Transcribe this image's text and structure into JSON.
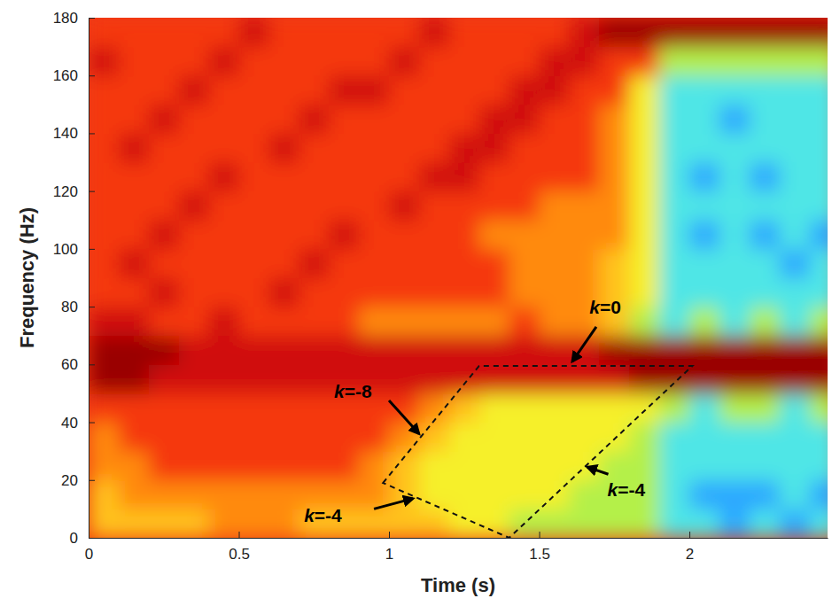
{
  "chart_data": {
    "type": "heatmap",
    "xlabel": "Time (s)",
    "ylabel": "Frequency (Hz)",
    "xlim": [
      0,
      2.46
    ],
    "ylim": [
      0,
      180
    ],
    "xticks": [
      0,
      0.5,
      1,
      1.5,
      2
    ],
    "yticks": [
      0,
      20,
      40,
      60,
      80,
      100,
      120,
      140,
      160,
      180
    ],
    "zlim": [
      0,
      10
    ],
    "x": [
      0.05,
      0.15,
      0.25,
      0.35,
      0.45,
      0.55,
      0.65,
      0.75,
      0.85,
      0.95,
      1.05,
      1.15,
      1.25,
      1.35,
      1.45,
      1.55,
      1.65,
      1.75,
      1.85,
      1.95,
      2.05,
      2.15,
      2.25,
      2.35,
      2.45
    ],
    "y": [
      5,
      15,
      25,
      35,
      45,
      55,
      65,
      75,
      85,
      95,
      105,
      115,
      125,
      135,
      145,
      155,
      165,
      175
    ],
    "values": [
      [
        6,
        6,
        6,
        6,
        7,
        7,
        7,
        6,
        6,
        6,
        6,
        6,
        5,
        5,
        4,
        4,
        4,
        4,
        4,
        3,
        3,
        2,
        3,
        2,
        3
      ],
      [
        6,
        7,
        7,
        7,
        7,
        7,
        7,
        7,
        7,
        7,
        6,
        5,
        5,
        5,
        5,
        5,
        4,
        4,
        4,
        3,
        2,
        2,
        2,
        3,
        2
      ],
      [
        7,
        7,
        8,
        8,
        8,
        8,
        8,
        8,
        8,
        7,
        6,
        5,
        5,
        5,
        5,
        5,
        5,
        4,
        4,
        3,
        3,
        3,
        3,
        3,
        3
      ],
      [
        7,
        8,
        8,
        8,
        8,
        8,
        8,
        8,
        8,
        8,
        7,
        6,
        5,
        5,
        5,
        5,
        5,
        5,
        4,
        3,
        3,
        3,
        3,
        3,
        3
      ],
      [
        8,
        8,
        8,
        8,
        8,
        8,
        8,
        8,
        8,
        8,
        8,
        7,
        6,
        5,
        5,
        5,
        5,
        5,
        5,
        4,
        3,
        4,
        4,
        3,
        4
      ],
      [
        10,
        10,
        9,
        9,
        9,
        9,
        9,
        9,
        9,
        9,
        9,
        9,
        9,
        9,
        9,
        9,
        9,
        9,
        10,
        10,
        10,
        10,
        10,
        10,
        10
      ],
      [
        10,
        10,
        10,
        9,
        9,
        9,
        9,
        9,
        9,
        9,
        9,
        9,
        9,
        9,
        9,
        9,
        9,
        10,
        10,
        10,
        10,
        10,
        10,
        10,
        10
      ],
      [
        9,
        9,
        8,
        8,
        9,
        8,
        8,
        8,
        8,
        7,
        7,
        7,
        7,
        7,
        8,
        7,
        7,
        6,
        4,
        3,
        4,
        3,
        4,
        3,
        4
      ],
      [
        8,
        8,
        9,
        8,
        8,
        8,
        9,
        8,
        8,
        8,
        8,
        8,
        8,
        8,
        7,
        7,
        7,
        6,
        5,
        3,
        3,
        3,
        3,
        3,
        3
      ],
      [
        8,
        9,
        8,
        8,
        8,
        8,
        8,
        9,
        8,
        8,
        8,
        8,
        8,
        8,
        7,
        7,
        7,
        6,
        5,
        3,
        3,
        3,
        3,
        2,
        3
      ],
      [
        8,
        8,
        9,
        8,
        8,
        8,
        8,
        8,
        9,
        8,
        8,
        8,
        8,
        7,
        7,
        7,
        7,
        7,
        5,
        3,
        2,
        3,
        2,
        3,
        2
      ],
      [
        8,
        8,
        8,
        9,
        8,
        8,
        8,
        8,
        8,
        8,
        9,
        8,
        8,
        8,
        8,
        7,
        7,
        7,
        5,
        3,
        3,
        3,
        3,
        3,
        3
      ],
      [
        8,
        8,
        8,
        8,
        9,
        8,
        8,
        8,
        8,
        8,
        8,
        9,
        9,
        8,
        8,
        8,
        8,
        7,
        5,
        3,
        2,
        3,
        2,
        3,
        3
      ],
      [
        8,
        9,
        8,
        8,
        8,
        8,
        9,
        8,
        8,
        8,
        8,
        8,
        9,
        9,
        8,
        8,
        8,
        7,
        5,
        3,
        3,
        3,
        3,
        3,
        3
      ],
      [
        8,
        8,
        9,
        8,
        8,
        8,
        8,
        9,
        8,
        8,
        8,
        8,
        8,
        9,
        9,
        8,
        8,
        7,
        5,
        3,
        3,
        2,
        3,
        3,
        3
      ],
      [
        8,
        8,
        8,
        9,
        8,
        8,
        8,
        8,
        9,
        9,
        8,
        8,
        8,
        8,
        9,
        9,
        8,
        8,
        5,
        3,
        3,
        3,
        3,
        3,
        3
      ],
      [
        9,
        8,
        8,
        8,
        9,
        8,
        8,
        8,
        8,
        8,
        9,
        8,
        8,
        8,
        8,
        9,
        9,
        8,
        8,
        4,
        4,
        4,
        4,
        4,
        4
      ],
      [
        8,
        8,
        8,
        8,
        8,
        9,
        8,
        8,
        8,
        8,
        8,
        9,
        8,
        8,
        8,
        8,
        9,
        10,
        10,
        10,
        10,
        10,
        10,
        10,
        10
      ]
    ],
    "outline": {
      "x": [
        0.98,
        1.3,
        2.01,
        1.4
      ],
      "y": [
        19,
        59.5,
        59.5,
        0
      ],
      "line_style": "dashed"
    },
    "annotations": [
      {
        "text": "k=0",
        "x": 1.72,
        "y": 80,
        "arrow_x": [
          1.69,
          1.61
        ],
        "arrow_y": [
          73,
          61
        ]
      },
      {
        "text": "k=-8",
        "x": 0.88,
        "y": 51,
        "arrow_x": [
          1.0,
          1.1
        ],
        "arrow_y": [
          47.5,
          36
        ]
      },
      {
        "text": "k=-4",
        "x": 0.78,
        "y": 8,
        "arrow_x": [
          0.95,
          1.08
        ],
        "arrow_y": [
          10,
          13.6
        ]
      },
      {
        "text": "k=-4",
        "x": 1.79,
        "y": 17,
        "arrow_x": [
          1.73,
          1.66
        ],
        "arrow_y": [
          22,
          24.5
        ]
      }
    ]
  }
}
